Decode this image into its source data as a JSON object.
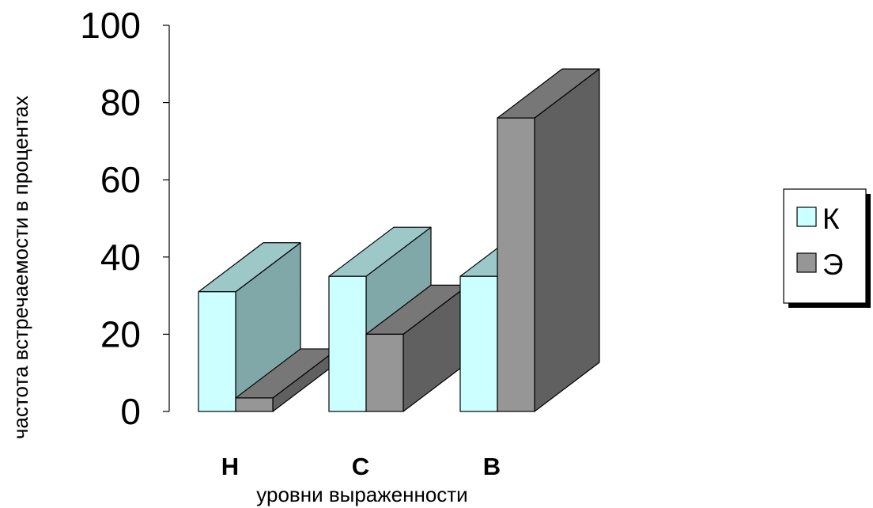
{
  "chart_data": {
    "type": "bar",
    "title": "",
    "xlabel": "уровни выраженности",
    "ylabel": "частота встречаемости в процентах",
    "categories": [
      "Н",
      "С",
      "В"
    ],
    "series": [
      {
        "name": "К",
        "values": [
          31,
          35,
          35
        ],
        "color": "#ccffff",
        "side_color": "#80a8a8",
        "top_color": "#9dc8c8"
      },
      {
        "name": "Э",
        "values": [
          3.5,
          20,
          76
        ],
        "color": "#969696",
        "side_color": "#606060",
        "top_color": "#777777"
      }
    ],
    "ylim": [
      0,
      100
    ],
    "yticks": [
      "0",
      "20",
      "40",
      "60",
      "80",
      "100"
    ],
    "grid": false,
    "legend_position": "right"
  }
}
